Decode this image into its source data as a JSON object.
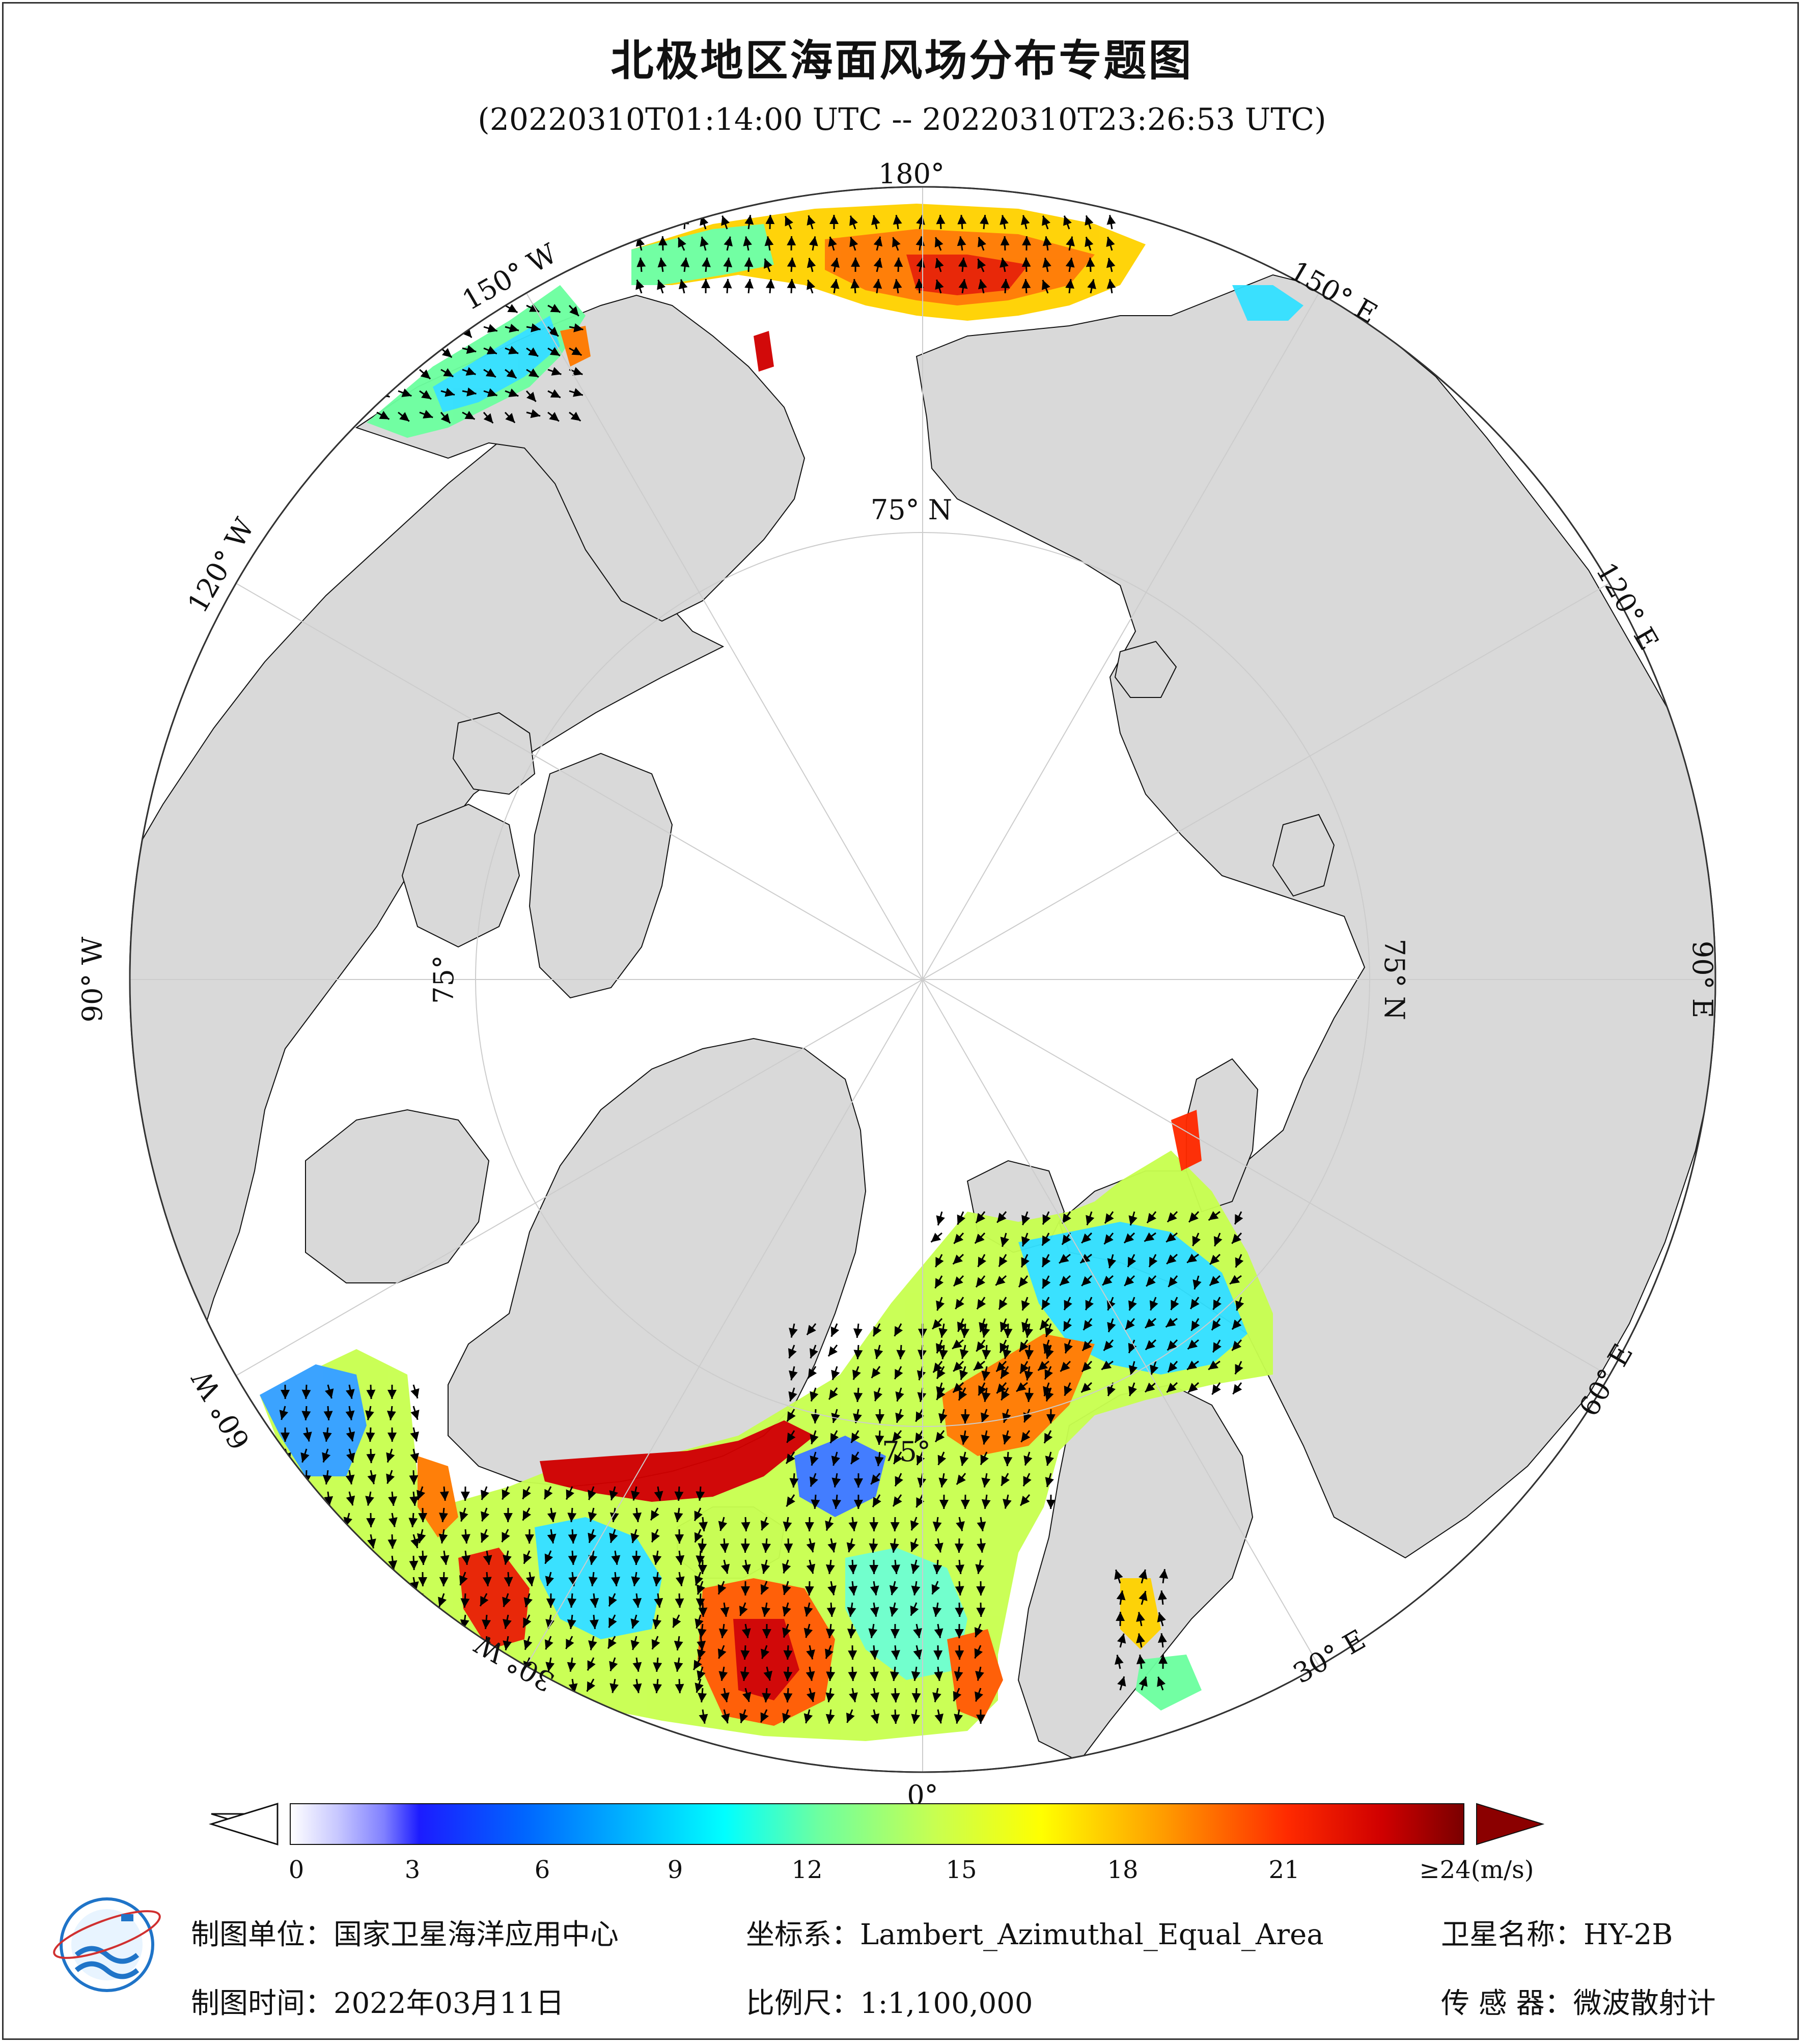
{
  "title": "北极地区海面风场分布专题图",
  "subtitle": "(20220310T01:14:00 UTC -- 20220310T23:26:53 UTC)",
  "graticule": {
    "lon_180": "180°",
    "lon_150e": "150° E",
    "lon_120e": "120° E",
    "lon_90e": "90° E",
    "lon_60e": "60° E",
    "lon_30e": "30° E",
    "lon_0": "0°",
    "lon_30w": "30° W",
    "lon_60w": "60° W",
    "lon_90w": "90° W",
    "lon_120w": "120° W",
    "lon_150w": "150° W",
    "lat_75n_top": "75° N",
    "lat_75n_right": "75° N",
    "lat_75_left": "75°",
    "lat_75_bottom": "75°"
  },
  "colorbar": {
    "ticks": [
      "0",
      "3",
      "6",
      "9",
      "12",
      "15",
      "18",
      "21"
    ],
    "max_label": "≥24(m/s)",
    "colors": {
      "very_low": "#ffffff",
      "low": "#0000ff",
      "mid_low": "#00e5ff",
      "mid": "#a6ff5a",
      "mid_high": "#ffff00",
      "high": "#ff8c00",
      "very_high": "#e60000",
      "max": "#8b0000"
    }
  },
  "footer": {
    "unit": "制图单位：国家卫星海洋应用中心",
    "coords": "坐标系：Lambert_Azimuthal_Equal_Area",
    "satellite": "卫星名称：HY-2B",
    "date": "制图时间：2022年03月11日",
    "scale": "比例尺：1:1,100,000",
    "sensor": "传 感 器：微波散射计"
  },
  "logo_text": "国家卫星海洋应用中心"
}
